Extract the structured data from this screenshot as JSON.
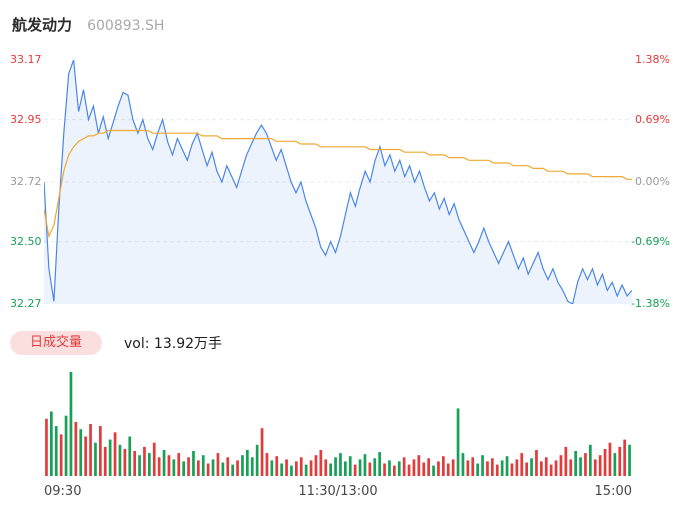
{
  "header": {
    "stock_name": "航发动力",
    "stock_code": "600893.SH"
  },
  "price_axis": {
    "left": [
      {
        "text": "33.17",
        "color": "#e23b3b"
      },
      {
        "text": "32.95",
        "color": "#e23b3b"
      },
      {
        "text": "32.72",
        "color": "#9b9b9b"
      },
      {
        "text": "32.50",
        "color": "#18a058"
      },
      {
        "text": "32.27",
        "color": "#18a058"
      }
    ],
    "right": [
      {
        "text": "1.38%",
        "color": "#e23b3b"
      },
      {
        "text": "0.69%",
        "color": "#e23b3b"
      },
      {
        "text": "0.00%",
        "color": "#9b9b9b"
      },
      {
        "text": "-0.69%",
        "color": "#18a058"
      },
      {
        "text": "-1.38%",
        "color": "#18a058"
      }
    ]
  },
  "volume_header": {
    "tab_label": "日成交量",
    "vol_text": "vol: 13.92万手"
  },
  "time_axis": [
    "09:30",
    "11:30/13:00",
    "15:00"
  ],
  "colors": {
    "up": "#e23b3b",
    "down": "#18a058",
    "neutral": "#9b9b9b",
    "price_line": "#4a86e8",
    "price_fill": "rgba(74,134,232,0.10)",
    "avg_line": "#f0a832",
    "grid": "#ebebeb",
    "tab_bg": "#fbdede",
    "tab_text": "#e23b3b"
  },
  "chart_data": {
    "type": "line",
    "title": "航发动力 600893.SH 分时图",
    "x_axis": {
      "ticks": [
        "09:30",
        "11:30/13:00",
        "15:00"
      ],
      "points": 120
    },
    "y_axis": {
      "price_ticks": [
        33.17,
        32.95,
        32.72,
        32.5,
        32.27
      ],
      "pct_ticks": [
        "1.38%",
        "0.69%",
        "0.00%",
        "-0.69%",
        "-1.38%"
      ],
      "ylim": [
        32.27,
        33.17
      ],
      "prev_close": 32.72
    },
    "series": [
      {
        "name": "price",
        "values": [
          32.72,
          32.4,
          32.28,
          32.62,
          32.9,
          33.12,
          33.17,
          32.98,
          33.06,
          32.95,
          33.0,
          32.9,
          32.96,
          32.88,
          32.94,
          33.0,
          33.05,
          33.04,
          32.95,
          32.9,
          32.95,
          32.88,
          32.84,
          32.9,
          32.95,
          32.87,
          32.82,
          32.88,
          32.84,
          32.8,
          32.86,
          32.9,
          32.84,
          32.78,
          32.83,
          32.76,
          32.72,
          32.78,
          32.74,
          32.7,
          32.76,
          32.82,
          32.86,
          32.9,
          32.93,
          32.9,
          32.85,
          32.8,
          32.84,
          32.78,
          32.72,
          32.68,
          32.72,
          32.65,
          32.6,
          32.55,
          32.48,
          32.45,
          32.5,
          32.46,
          32.52,
          32.6,
          32.68,
          32.63,
          32.7,
          32.76,
          32.72,
          32.8,
          32.85,
          32.78,
          32.82,
          32.76,
          32.8,
          32.74,
          32.78,
          32.72,
          32.76,
          32.7,
          32.65,
          32.68,
          32.62,
          32.66,
          32.6,
          32.64,
          32.58,
          32.54,
          32.5,
          32.46,
          32.5,
          32.55,
          32.5,
          32.46,
          32.42,
          32.46,
          32.5,
          32.45,
          32.4,
          32.44,
          32.38,
          32.42,
          32.46,
          32.4,
          32.36,
          32.4,
          32.35,
          32.32,
          32.28,
          32.27,
          32.35,
          32.4,
          32.36,
          32.4,
          32.34,
          32.38,
          32.32,
          32.35,
          32.3,
          32.34,
          32.3,
          32.32
        ]
      },
      {
        "name": "avg",
        "values": [
          32.62,
          32.52,
          32.56,
          32.66,
          32.76,
          32.82,
          32.85,
          32.87,
          32.88,
          32.89,
          32.89,
          32.9,
          32.9,
          32.91,
          32.91,
          32.91,
          32.91,
          32.91,
          32.91,
          32.91,
          32.91,
          32.91,
          32.9,
          32.9,
          32.9,
          32.9,
          32.9,
          32.9,
          32.9,
          32.9,
          32.9,
          32.9,
          32.89,
          32.89,
          32.89,
          32.89,
          32.88,
          32.88,
          32.88,
          32.88,
          32.88,
          32.88,
          32.88,
          32.88,
          32.88,
          32.88,
          32.88,
          32.87,
          32.87,
          32.87,
          32.87,
          32.87,
          32.86,
          32.86,
          32.86,
          32.86,
          32.85,
          32.85,
          32.85,
          32.85,
          32.85,
          32.85,
          32.85,
          32.85,
          32.85,
          32.85,
          32.84,
          32.84,
          32.84,
          32.84,
          32.84,
          32.84,
          32.84,
          32.83,
          32.83,
          32.83,
          32.83,
          32.83,
          32.82,
          32.82,
          32.82,
          32.82,
          32.81,
          32.81,
          32.81,
          32.81,
          32.8,
          32.8,
          32.8,
          32.8,
          32.8,
          32.79,
          32.79,
          32.79,
          32.79,
          32.78,
          32.78,
          32.78,
          32.78,
          32.77,
          32.77,
          32.77,
          32.76,
          32.76,
          32.76,
          32.76,
          32.75,
          32.75,
          32.75,
          32.75,
          32.75,
          32.74,
          32.74,
          32.74,
          32.74,
          32.74,
          32.74,
          32.74,
          32.73,
          32.73
        ]
      }
    ],
    "volume": {
      "label": "日成交量",
      "total_label": "vol: 13.92万手",
      "relative_heights": true,
      "bars": [
        [
          55,
          "r"
        ],
        [
          62,
          "g"
        ],
        [
          48,
          "g"
        ],
        [
          40,
          "r"
        ],
        [
          58,
          "g"
        ],
        [
          100,
          "g"
        ],
        [
          52,
          "r"
        ],
        [
          45,
          "g"
        ],
        [
          38,
          "r"
        ],
        [
          50,
          "r"
        ],
        [
          32,
          "g"
        ],
        [
          48,
          "r"
        ],
        [
          28,
          "r"
        ],
        [
          35,
          "g"
        ],
        [
          42,
          "r"
        ],
        [
          30,
          "g"
        ],
        [
          26,
          "r"
        ],
        [
          38,
          "g"
        ],
        [
          24,
          "r"
        ],
        [
          20,
          "g"
        ],
        [
          28,
          "r"
        ],
        [
          22,
          "g"
        ],
        [
          32,
          "r"
        ],
        [
          18,
          "r"
        ],
        [
          25,
          "g"
        ],
        [
          20,
          "r"
        ],
        [
          16,
          "g"
        ],
        [
          22,
          "r"
        ],
        [
          14,
          "g"
        ],
        [
          18,
          "r"
        ],
        [
          24,
          "g"
        ],
        [
          15,
          "r"
        ],
        [
          20,
          "g"
        ],
        [
          12,
          "r"
        ],
        [
          16,
          "g"
        ],
        [
          22,
          "r"
        ],
        [
          13,
          "g"
        ],
        [
          18,
          "r"
        ],
        [
          11,
          "g"
        ],
        [
          15,
          "r"
        ],
        [
          20,
          "g"
        ],
        [
          25,
          "g"
        ],
        [
          18,
          "g"
        ],
        [
          30,
          "g"
        ],
        [
          46,
          "r"
        ],
        [
          22,
          "r"
        ],
        [
          15,
          "g"
        ],
        [
          19,
          "r"
        ],
        [
          12,
          "g"
        ],
        [
          16,
          "r"
        ],
        [
          10,
          "g"
        ],
        [
          14,
          "r"
        ],
        [
          18,
          "r"
        ],
        [
          11,
          "g"
        ],
        [
          15,
          "r"
        ],
        [
          20,
          "r"
        ],
        [
          25,
          "r"
        ],
        [
          16,
          "r"
        ],
        [
          12,
          "g"
        ],
        [
          18,
          "g"
        ],
        [
          22,
          "g"
        ],
        [
          14,
          "g"
        ],
        [
          19,
          "g"
        ],
        [
          11,
          "r"
        ],
        [
          16,
          "g"
        ],
        [
          21,
          "g"
        ],
        [
          13,
          "r"
        ],
        [
          17,
          "g"
        ],
        [
          23,
          "g"
        ],
        [
          12,
          "r"
        ],
        [
          15,
          "g"
        ],
        [
          10,
          "r"
        ],
        [
          14,
          "g"
        ],
        [
          18,
          "r"
        ],
        [
          11,
          "r"
        ],
        [
          16,
          "r"
        ],
        [
          20,
          "r"
        ],
        [
          13,
          "r"
        ],
        [
          17,
          "r"
        ],
        [
          10,
          "g"
        ],
        [
          14,
          "r"
        ],
        [
          19,
          "r"
        ],
        [
          12,
          "r"
        ],
        [
          16,
          "r"
        ],
        [
          65,
          "g"
        ],
        [
          22,
          "g"
        ],
        [
          15,
          "r"
        ],
        [
          18,
          "r"
        ],
        [
          12,
          "g"
        ],
        [
          20,
          "g"
        ],
        [
          14,
          "r"
        ],
        [
          17,
          "r"
        ],
        [
          11,
          "r"
        ],
        [
          15,
          "g"
        ],
        [
          19,
          "g"
        ],
        [
          12,
          "r"
        ],
        [
          16,
          "r"
        ],
        [
          22,
          "r"
        ],
        [
          13,
          "r"
        ],
        [
          17,
          "g"
        ],
        [
          25,
          "r"
        ],
        [
          14,
          "r"
        ],
        [
          18,
          "r"
        ],
        [
          11,
          "r"
        ],
        [
          15,
          "r"
        ],
        [
          20,
          "r"
        ],
        [
          28,
          "r"
        ],
        [
          16,
          "r"
        ],
        [
          24,
          "g"
        ],
        [
          18,
          "g"
        ],
        [
          22,
          "r"
        ],
        [
          30,
          "g"
        ],
        [
          16,
          "r"
        ],
        [
          20,
          "r"
        ],
        [
          26,
          "r"
        ],
        [
          32,
          "r"
        ],
        [
          22,
          "g"
        ],
        [
          28,
          "r"
        ],
        [
          35,
          "r"
        ],
        [
          30,
          "g"
        ]
      ]
    }
  }
}
